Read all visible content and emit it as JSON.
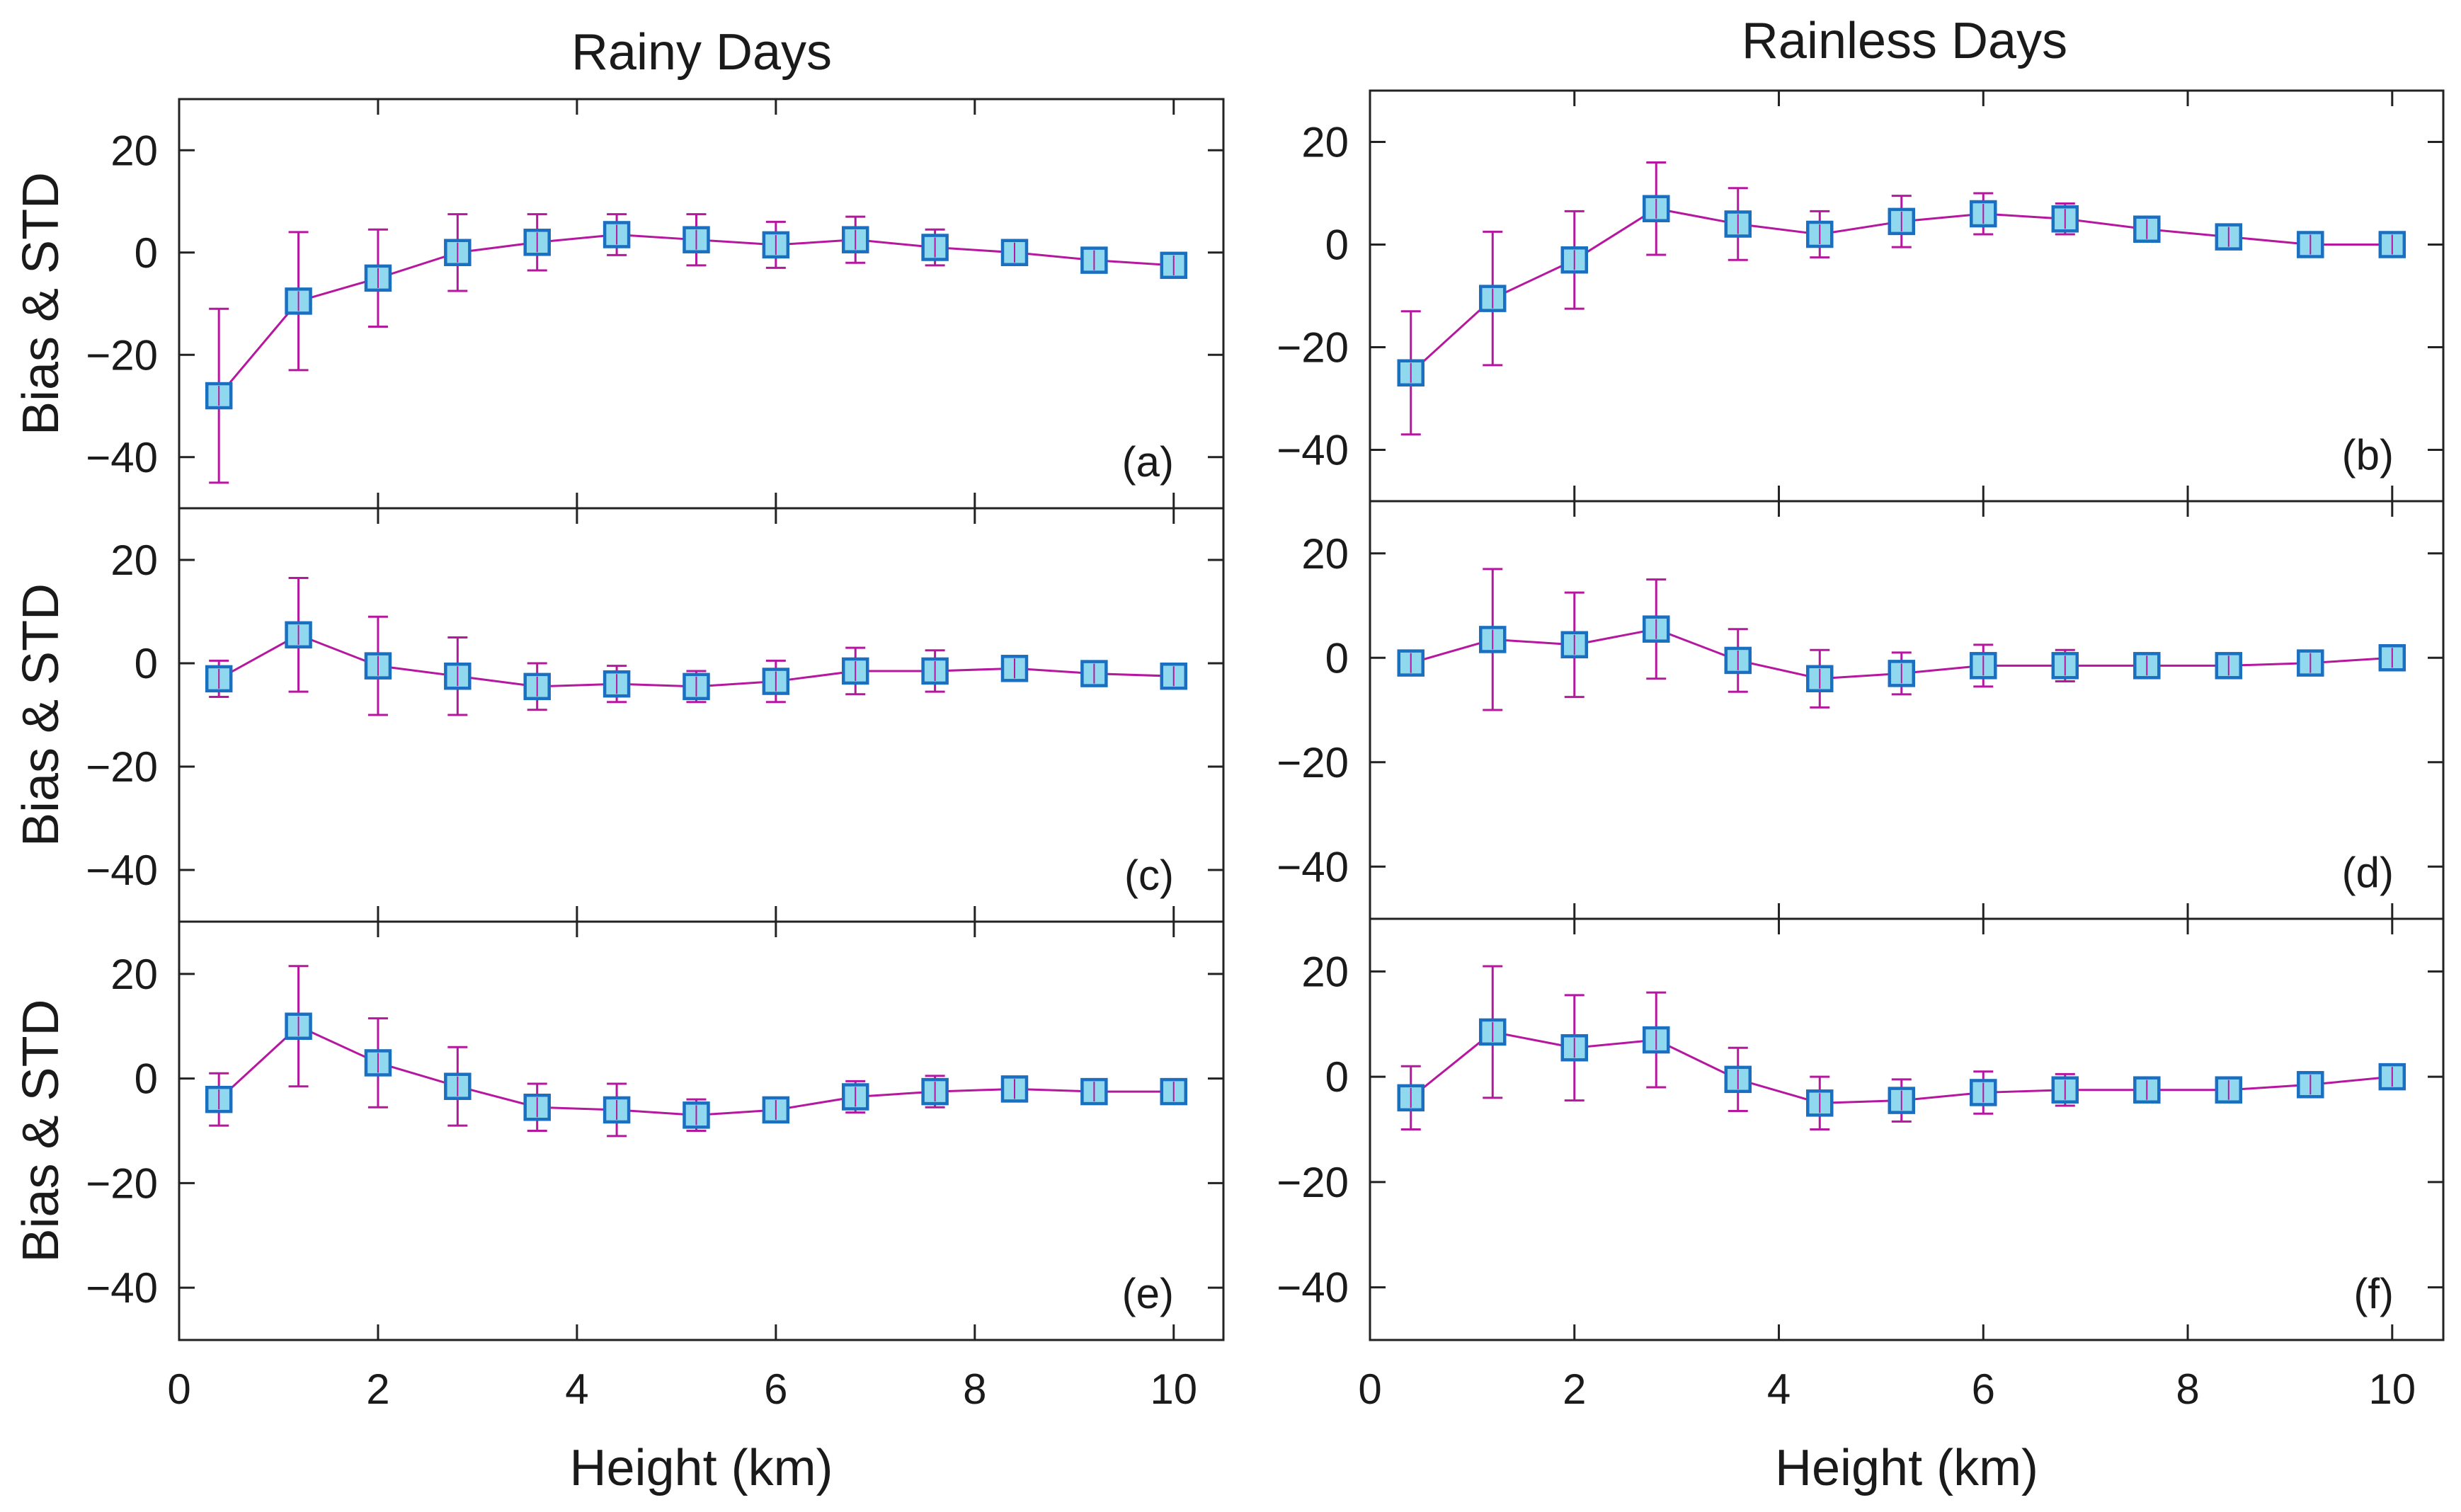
{
  "colors": {
    "line": "#b5179e",
    "marker_fill": "#8fd8ee",
    "marker_edge": "#1a6fc0",
    "axis": "#222222",
    "text": "#1a1a1a"
  },
  "columns": {
    "left_title": "Rainy Days",
    "right_title": "Rainless Days"
  },
  "chart_data": [
    {
      "type": "line",
      "panel_label": "(a)",
      "column_title": "Rainy Days",
      "ylabel": "Bias & STD",
      "xlabel": "",
      "xlim": [
        0,
        10.5
      ],
      "ylim": [
        -50,
        30
      ],
      "xticks": [
        0,
        2,
        4,
        6,
        8,
        10
      ],
      "yticks": [
        20,
        0,
        -20,
        -40
      ],
      "ytick_labels": [
        "20",
        "0",
        "−20",
        "−40"
      ],
      "x": [
        0.4,
        1.2,
        2.0,
        2.8,
        3.6,
        4.4,
        5.2,
        6.0,
        6.8,
        7.6,
        8.4,
        9.2,
        10.0
      ],
      "bias": [
        -28,
        -9.5,
        -5,
        0,
        2,
        3.5,
        2.5,
        1.5,
        2.5,
        1,
        0,
        -1.5,
        -2.5
      ],
      "std": [
        17,
        13.5,
        9.5,
        7.5,
        5.5,
        4,
        5,
        4.5,
        4.5,
        3.5,
        1.5,
        1.5,
        1
      ]
    },
    {
      "type": "line",
      "panel_label": "(b)",
      "column_title": "Rainless Days",
      "ylabel": "",
      "xlabel": "",
      "xlim": [
        0,
        10.5
      ],
      "ylim": [
        -50,
        30
      ],
      "xticks": [
        0,
        2,
        4,
        6,
        8,
        10
      ],
      "yticks": [
        20,
        0,
        -20,
        -40
      ],
      "ytick_labels": [
        "20",
        "0",
        "−20",
        "−40"
      ],
      "x": [
        0.4,
        1.2,
        2.0,
        2.8,
        3.6,
        4.4,
        5.2,
        6.0,
        6.8,
        7.6,
        8.4,
        9.2,
        10.0
      ],
      "bias": [
        -25,
        -10.5,
        -3,
        7,
        4,
        2,
        4.5,
        6,
        5,
        3,
        1.5,
        0,
        0
      ],
      "std": [
        12,
        13,
        9.5,
        9,
        7,
        4.5,
        5,
        4,
        3,
        1.5,
        0.5,
        0.5,
        0.5
      ]
    },
    {
      "type": "line",
      "panel_label": "(c)",
      "column_title": "Rainy Days",
      "ylabel": "Bias & STD",
      "xlabel": "",
      "xlim": [
        0,
        10.5
      ],
      "ylim": [
        -50,
        30
      ],
      "xticks": [
        0,
        2,
        4,
        6,
        8,
        10
      ],
      "yticks": [
        20,
        0,
        -20,
        -40
      ],
      "ytick_labels": [
        "20",
        "0",
        "−20",
        "−40"
      ],
      "x": [
        0.4,
        1.2,
        2.0,
        2.8,
        3.6,
        4.4,
        5.2,
        6.0,
        6.8,
        7.6,
        8.4,
        9.2,
        10.0
      ],
      "bias": [
        -3,
        5.5,
        -0.5,
        -2.5,
        -4.5,
        -4,
        -4.5,
        -3.5,
        -1.5,
        -1.5,
        -1,
        -2,
        -2.5
      ],
      "std": [
        3.5,
        11,
        9.5,
        7.5,
        4.5,
        3.5,
        3,
        4,
        4.5,
        4,
        1.5,
        2,
        1
      ]
    },
    {
      "type": "line",
      "panel_label": "(d)",
      "column_title": "Rainless Days",
      "ylabel": "",
      "xlabel": "",
      "xlim": [
        0,
        10.5
      ],
      "ylim": [
        -50,
        30
      ],
      "xticks": [
        0,
        2,
        4,
        6,
        8,
        10
      ],
      "yticks": [
        20,
        0,
        -20,
        -40
      ],
      "ytick_labels": [
        "20",
        "0",
        "−20",
        "−40"
      ],
      "x": [
        0.4,
        1.2,
        2.0,
        2.8,
        3.6,
        4.4,
        5.2,
        6.0,
        6.8,
        7.6,
        8.4,
        9.2,
        10.0
      ],
      "bias": [
        -1,
        3.5,
        2.5,
        5.5,
        -0.5,
        -4,
        -3,
        -1.5,
        -1.5,
        -1.5,
        -1.5,
        -1,
        0
      ],
      "std": [
        0.5,
        13.5,
        10,
        9.5,
        6,
        5.5,
        4,
        4,
        3,
        0.5,
        0.5,
        0.5,
        0.5
      ]
    },
    {
      "type": "line",
      "panel_label": "(e)",
      "column_title": "Rainy Days",
      "ylabel": "Bias & STD",
      "xlabel": "Height (km)",
      "xlim": [
        0,
        10.5
      ],
      "ylim": [
        -50,
        30
      ],
      "xticks": [
        0,
        2,
        4,
        6,
        8,
        10
      ],
      "xtick_labels": [
        "0",
        "2",
        "4",
        "6",
        "8",
        "10"
      ],
      "yticks": [
        20,
        0,
        -20,
        -40
      ],
      "ytick_labels": [
        "20",
        "0",
        "−20",
        "−40"
      ],
      "x": [
        0.4,
        1.2,
        2.0,
        2.8,
        3.6,
        4.4,
        5.2,
        6.0,
        6.8,
        7.6,
        8.4,
        9.2,
        10.0
      ],
      "bias": [
        -4,
        10,
        3,
        -1.5,
        -5.5,
        -6,
        -7,
        -6,
        -3.5,
        -2.5,
        -2,
        -2.5,
        -2.5
      ],
      "std": [
        5,
        11.5,
        8.5,
        7.5,
        4.5,
        5,
        3,
        2,
        3,
        3,
        1.5,
        1.5,
        1
      ]
    },
    {
      "type": "line",
      "panel_label": "(f)",
      "column_title": "Rainless Days",
      "ylabel": "",
      "xlabel": "Height (km)",
      "xlim": [
        0,
        10.5
      ],
      "ylim": [
        -50,
        30
      ],
      "xticks": [
        0,
        2,
        4,
        6,
        8,
        10
      ],
      "xtick_labels": [
        "0",
        "2",
        "4",
        "6",
        "8",
        "10"
      ],
      "yticks": [
        20,
        0,
        -20,
        -40
      ],
      "ytick_labels": [
        "20",
        "0",
        "−20",
        "−40"
      ],
      "x": [
        0.4,
        1.2,
        2.0,
        2.8,
        3.6,
        4.4,
        5.2,
        6.0,
        6.8,
        7.6,
        8.4,
        9.2,
        10.0
      ],
      "bias": [
        -4,
        8.5,
        5.5,
        7,
        -0.5,
        -5,
        -4.5,
        -3,
        -2.5,
        -2.5,
        -2.5,
        -1.5,
        0
      ],
      "std": [
        6,
        12.5,
        10,
        9,
        6,
        5,
        4,
        4,
        3,
        0.5,
        0.5,
        0.5,
        0.5
      ]
    }
  ]
}
